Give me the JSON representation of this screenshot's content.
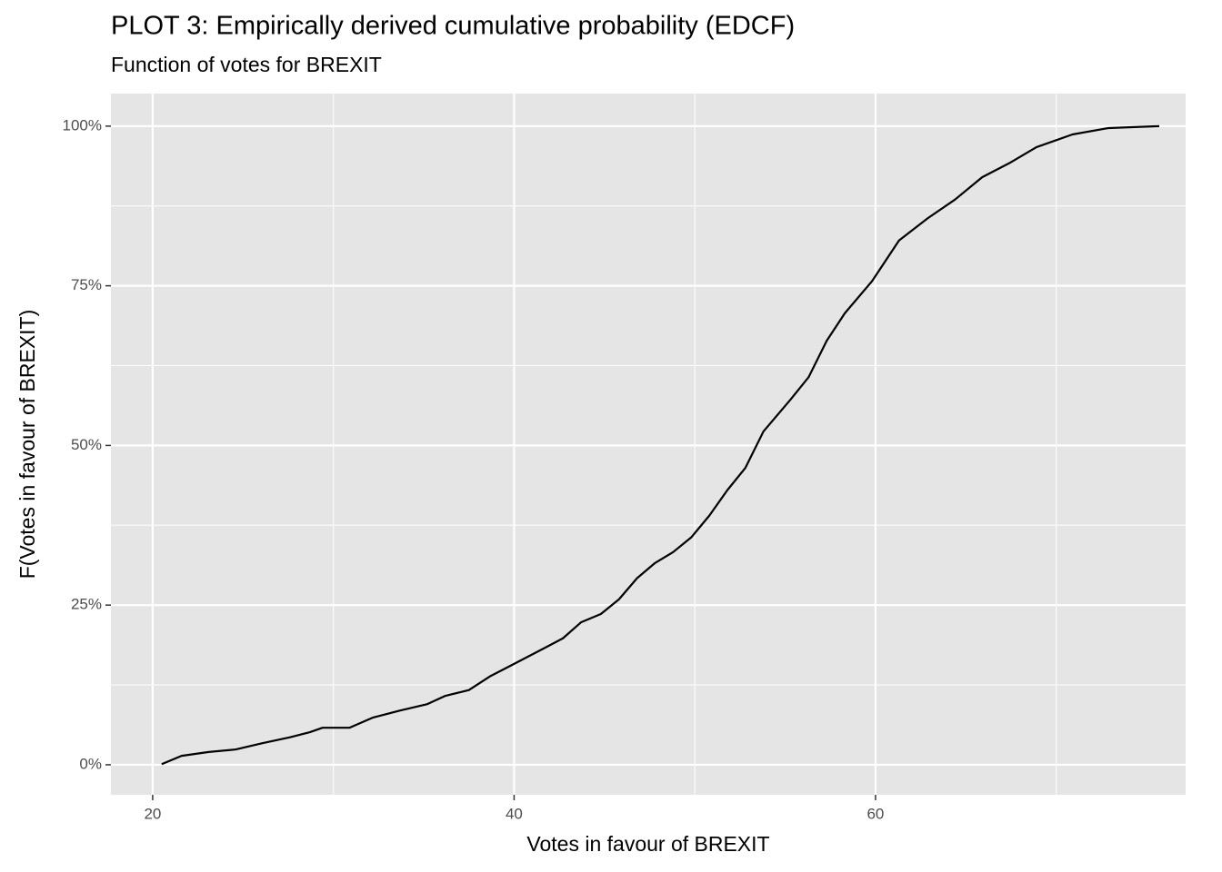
{
  "chart_data": {
    "type": "line",
    "title": "PLOT 3: Empirically derived cumulative probability (EDCF)",
    "subtitle": "Function of votes for BREXIT",
    "x_label": "Votes in favour of BREXIT",
    "y_label": "F(Votes in favour of BREXIT)",
    "x": [
      20.5,
      21.6,
      23.1,
      24.6,
      26.1,
      27.6,
      28.7,
      29.4,
      30.9,
      32.2,
      33.7,
      35.2,
      36.2,
      37.5,
      38.7,
      40,
      41.7,
      42.7,
      43.7,
      44.8,
      45.8,
      46.8,
      47.8,
      48.8,
      49.8,
      50.8,
      51.8,
      52.8,
      53.8,
      55.3,
      56.3,
      57.3,
      58.3,
      59.8,
      61.3,
      62.9,
      64.4,
      65.9,
      67.4,
      68.9,
      70.9,
      72.9,
      75.7
    ],
    "series": [
      {
        "color": "#000000",
        "values": [
          0.1,
          1.4,
          2.0,
          2.4,
          3.4,
          4.3,
          5.1,
          5.8,
          5.8,
          7.4,
          8.5,
          9.5,
          10.8,
          11.7,
          13.9,
          15.8,
          18.3,
          19.8,
          22.3,
          23.6,
          25.9,
          29.2,
          31.6,
          33.3,
          35.6,
          39.0,
          43.0,
          46.5,
          52.2,
          57.2,
          60.7,
          66.4,
          70.7,
          75.7,
          82.1,
          85.6,
          88.5,
          92.0,
          94.2,
          96.7,
          98.7,
          99.7,
          100
        ]
      }
    ],
    "xlim": [
      17.69,
      77.16
    ],
    "ylim": [
      -4.7,
      105.1
    ],
    "xticks": [
      20,
      40,
      60
    ],
    "yticks": [
      {
        "value": 0,
        "label": "0%"
      },
      {
        "value": 25,
        "label": "25%"
      },
      {
        "value": 50,
        "label": "50%"
      },
      {
        "value": 75,
        "label": "75%"
      },
      {
        "value": 100,
        "label": "100%"
      }
    ],
    "grid": true
  }
}
